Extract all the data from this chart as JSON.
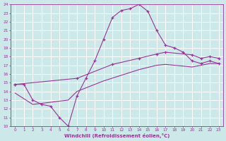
{
  "xlabel": "Windchill (Refroidissement éolien,°C)",
  "xlim": [
    -0.5,
    23.5
  ],
  "ylim": [
    10,
    24
  ],
  "xticks": [
    0,
    1,
    2,
    3,
    4,
    5,
    6,
    7,
    8,
    9,
    10,
    11,
    12,
    13,
    14,
    15,
    16,
    17,
    18,
    19,
    20,
    21,
    22,
    23
  ],
  "yticks": [
    10,
    11,
    12,
    13,
    14,
    15,
    16,
    17,
    18,
    19,
    20,
    21,
    22,
    23,
    24
  ],
  "bg_color": "#cce8e8",
  "grid_color": "#ffffff",
  "line_color": "#993399",
  "line1_x": [
    0,
    1,
    2,
    3,
    4,
    5,
    6,
    7,
    8,
    9,
    10,
    11,
    12,
    13,
    14,
    15,
    16,
    17,
    18,
    19,
    20,
    21,
    22,
    23
  ],
  "line1_y": [
    14.8,
    14.8,
    13.0,
    12.5,
    12.3,
    11.0,
    10.0,
    13.5,
    15.5,
    17.5,
    20.0,
    22.5,
    23.3,
    23.5,
    24.0,
    23.2,
    21.0,
    19.3,
    19.0,
    18.5,
    17.5,
    17.2,
    17.5,
    17.2
  ],
  "line2_x": [
    0,
    7,
    11,
    14,
    16,
    17,
    20,
    21,
    22,
    23
  ],
  "line2_y": [
    14.8,
    15.5,
    17.1,
    17.8,
    18.3,
    18.5,
    18.2,
    17.8,
    18.0,
    17.8
  ],
  "line3_x": [
    0,
    2,
    6,
    7,
    10,
    14,
    16,
    17,
    20,
    21,
    22,
    23
  ],
  "line3_y": [
    13.8,
    12.5,
    13.0,
    14.0,
    15.2,
    16.5,
    17.0,
    17.1,
    16.8,
    17.0,
    17.2,
    17.2
  ]
}
